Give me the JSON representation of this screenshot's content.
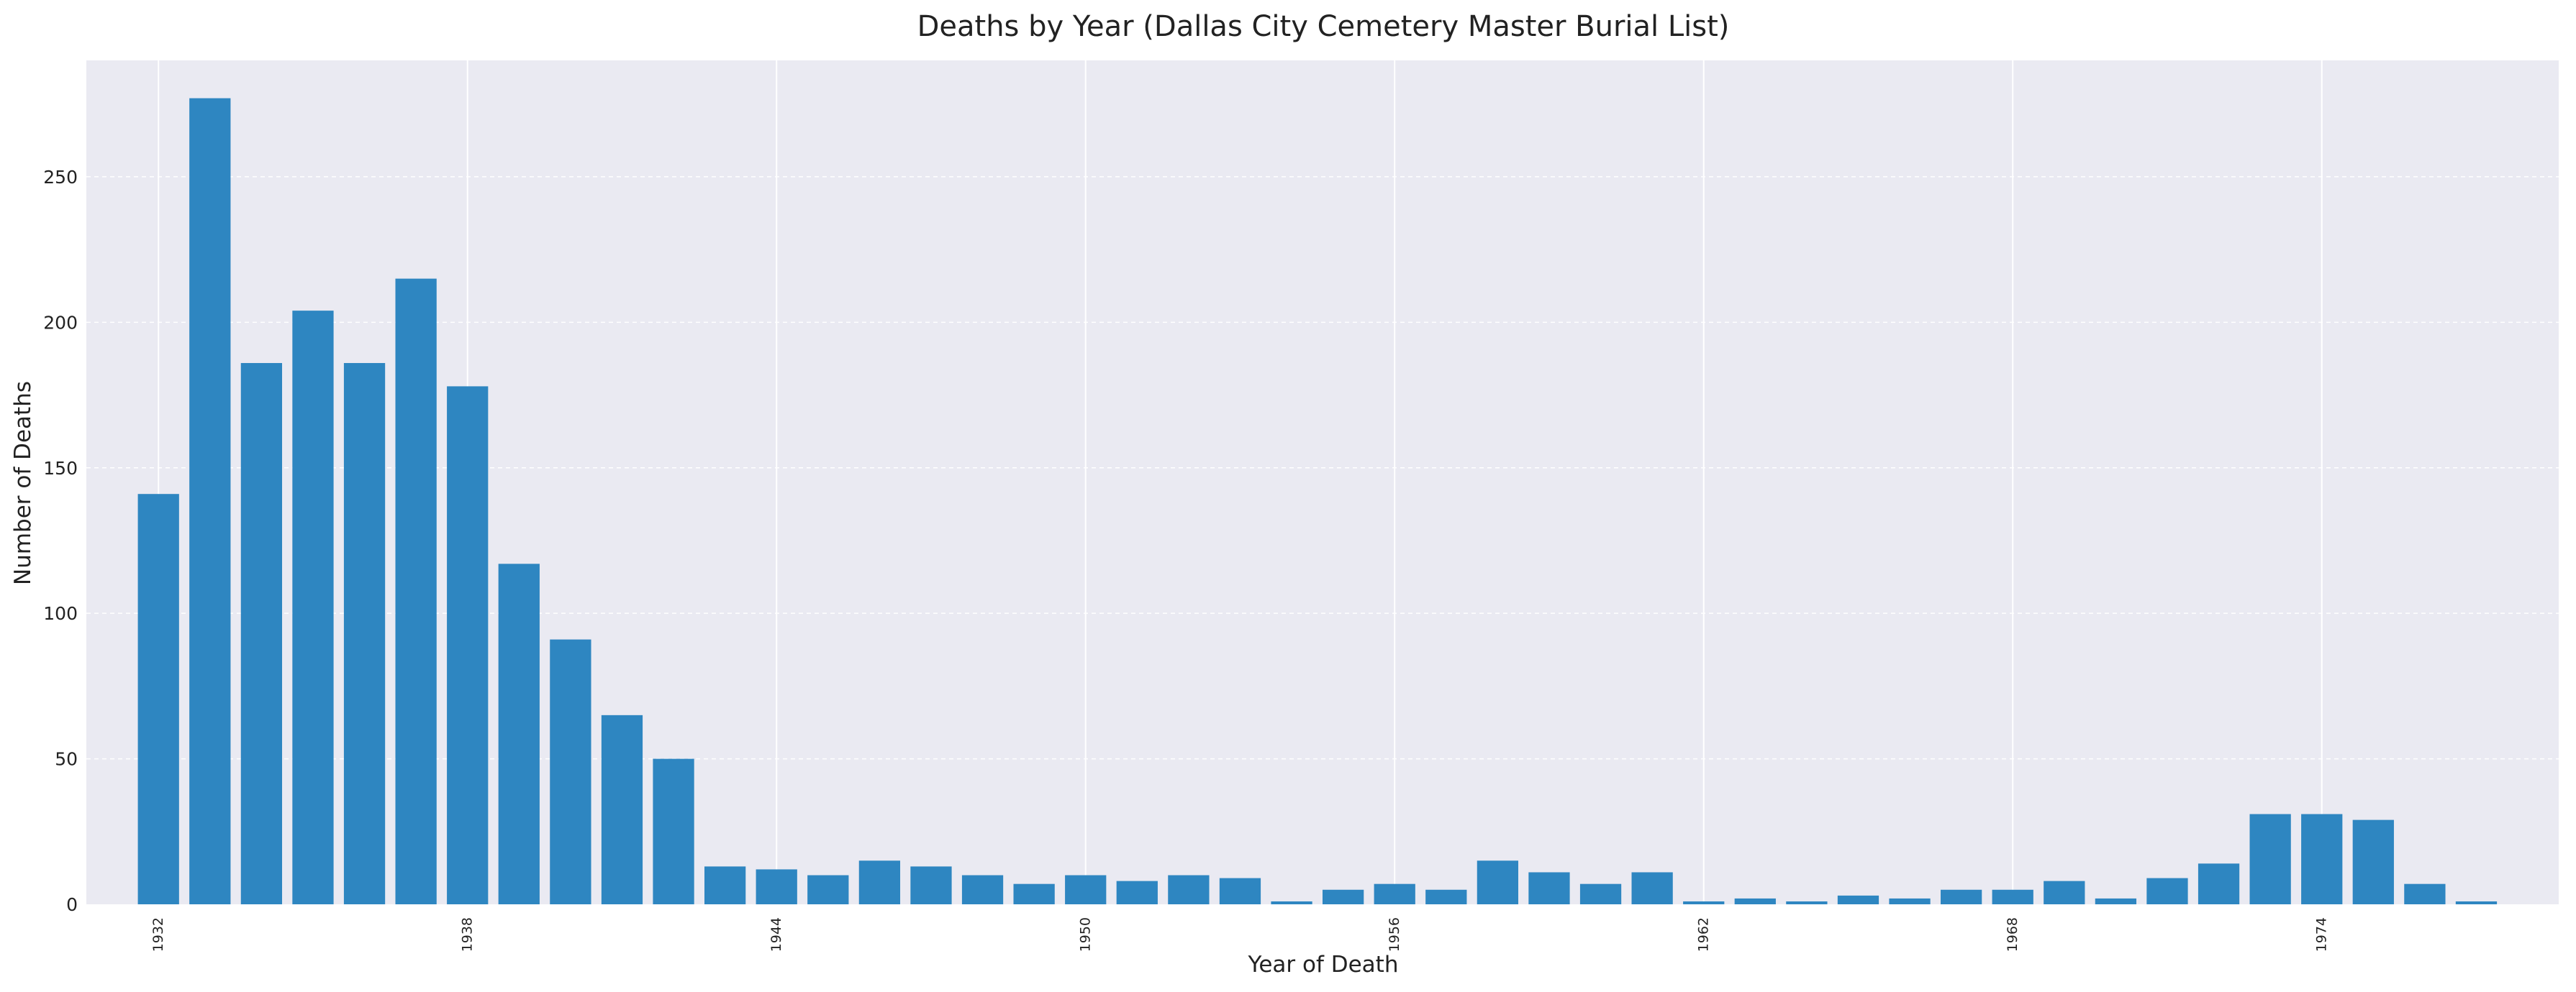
{
  "chart_data": {
    "type": "bar",
    "title": "Deaths by Year (Dallas City Cemetery Master Burial List)",
    "xlabel": "Year of Death",
    "ylabel": "Number of Deaths",
    "x": [
      1932,
      1933,
      1934,
      1935,
      1936,
      1937,
      1938,
      1939,
      1940,
      1941,
      1942,
      1943,
      1944,
      1945,
      1946,
      1947,
      1948,
      1949,
      1950,
      1951,
      1952,
      1953,
      1954,
      1955,
      1956,
      1957,
      1958,
      1959,
      1960,
      1961,
      1962,
      1963,
      1964,
      1965,
      1966,
      1967,
      1968,
      1969,
      1970,
      1971,
      1972,
      1973,
      1974,
      1975,
      1976,
      1977
    ],
    "values": [
      141,
      277,
      186,
      204,
      186,
      215,
      178,
      117,
      91,
      65,
      50,
      13,
      12,
      10,
      15,
      13,
      10,
      7,
      10,
      8,
      10,
      9,
      1,
      5,
      7,
      5,
      15,
      11,
      7,
      11,
      1,
      2,
      1,
      3,
      2,
      5,
      5,
      8,
      2,
      9,
      14,
      31,
      31,
      29,
      7,
      1
    ],
    "xlim": [
      1930.6,
      1978.6
    ],
    "ylim": [
      0,
      290
    ],
    "x_ticks": [
      "1932",
      "1938",
      "1944",
      "1950",
      "1956",
      "1962",
      "1968",
      "1974"
    ],
    "y_ticks": [
      "0",
      "50",
      "100",
      "150",
      "200",
      "250"
    ],
    "grid": true,
    "colors": {
      "bar": "#2e86c1",
      "plot_bg": "#eaeaf2",
      "grid": "#ffffff"
    }
  }
}
